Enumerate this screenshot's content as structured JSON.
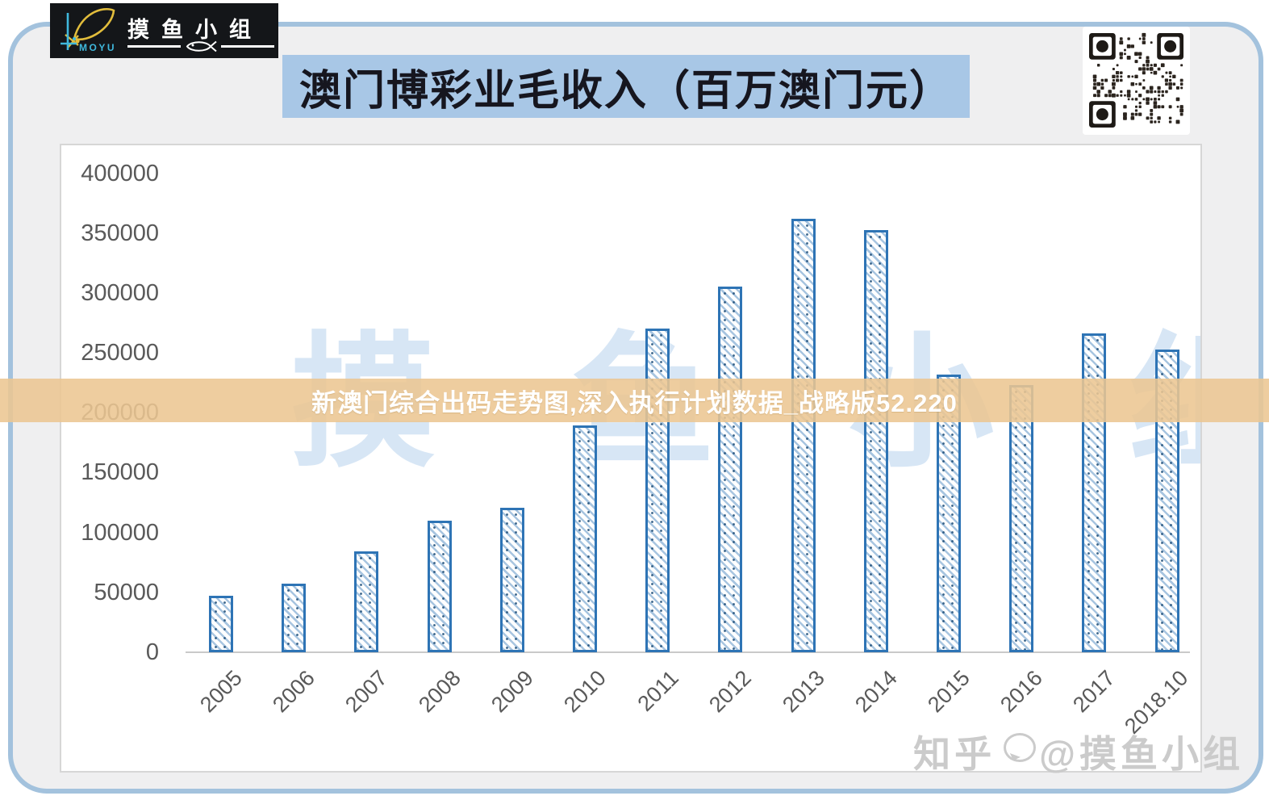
{
  "header": {
    "logo": {
      "name_latin": "MOYU",
      "name_cjk": "摸鱼小组"
    },
    "title": "澳门博彩业毛收入（百万澳门元）"
  },
  "overlay_banner": {
    "text": "新澳门综合出码走势图,深入执行计划数据_战略版52.220"
  },
  "watermarks": {
    "background": "摸 鱼 小 组",
    "zhihu_brand": "知乎",
    "zhihu_handle": "@摸鱼小组"
  },
  "colors": {
    "bar_border": "#2E74B5",
    "bar_hatch": "#7BA7CC",
    "title_banner_bg": "#A8C7E6",
    "overlay_banner_bg": "#ECC692",
    "frame_border": "#A3C2DD",
    "panel_border": "#D6D6D6",
    "axis_text": "#595959",
    "background_watermark_blue": "#B7D2EC",
    "logo_fish_yellow": "#E2BD3C",
    "logo_moyu_cyan": "#3FB8DC"
  },
  "chart_data": {
    "type": "bar",
    "title": "澳门博彩业毛收入（百万澳门元）",
    "unit": "百万澳门元",
    "categories": [
      "2005",
      "2006",
      "2007",
      "2008",
      "2009",
      "2010",
      "2011",
      "2012",
      "2013",
      "2014",
      "2015",
      "2016",
      "2017",
      "2018.10"
    ],
    "values": [
      47000,
      57500,
      84000,
      110000,
      120500,
      189500,
      270000,
      305000,
      362000,
      352500,
      232000,
      223000,
      266500,
      252500
    ],
    "xlabel": "",
    "ylabel": "",
    "ylim": [
      0,
      400000
    ],
    "yticks": [
      400000,
      350000,
      300000,
      250000,
      200000,
      150000,
      100000,
      50000,
      0
    ],
    "grid": false,
    "legend": null,
    "bar_fill": "white with blue diagonal hatch pattern",
    "x_tick_rotation_deg": 45
  }
}
